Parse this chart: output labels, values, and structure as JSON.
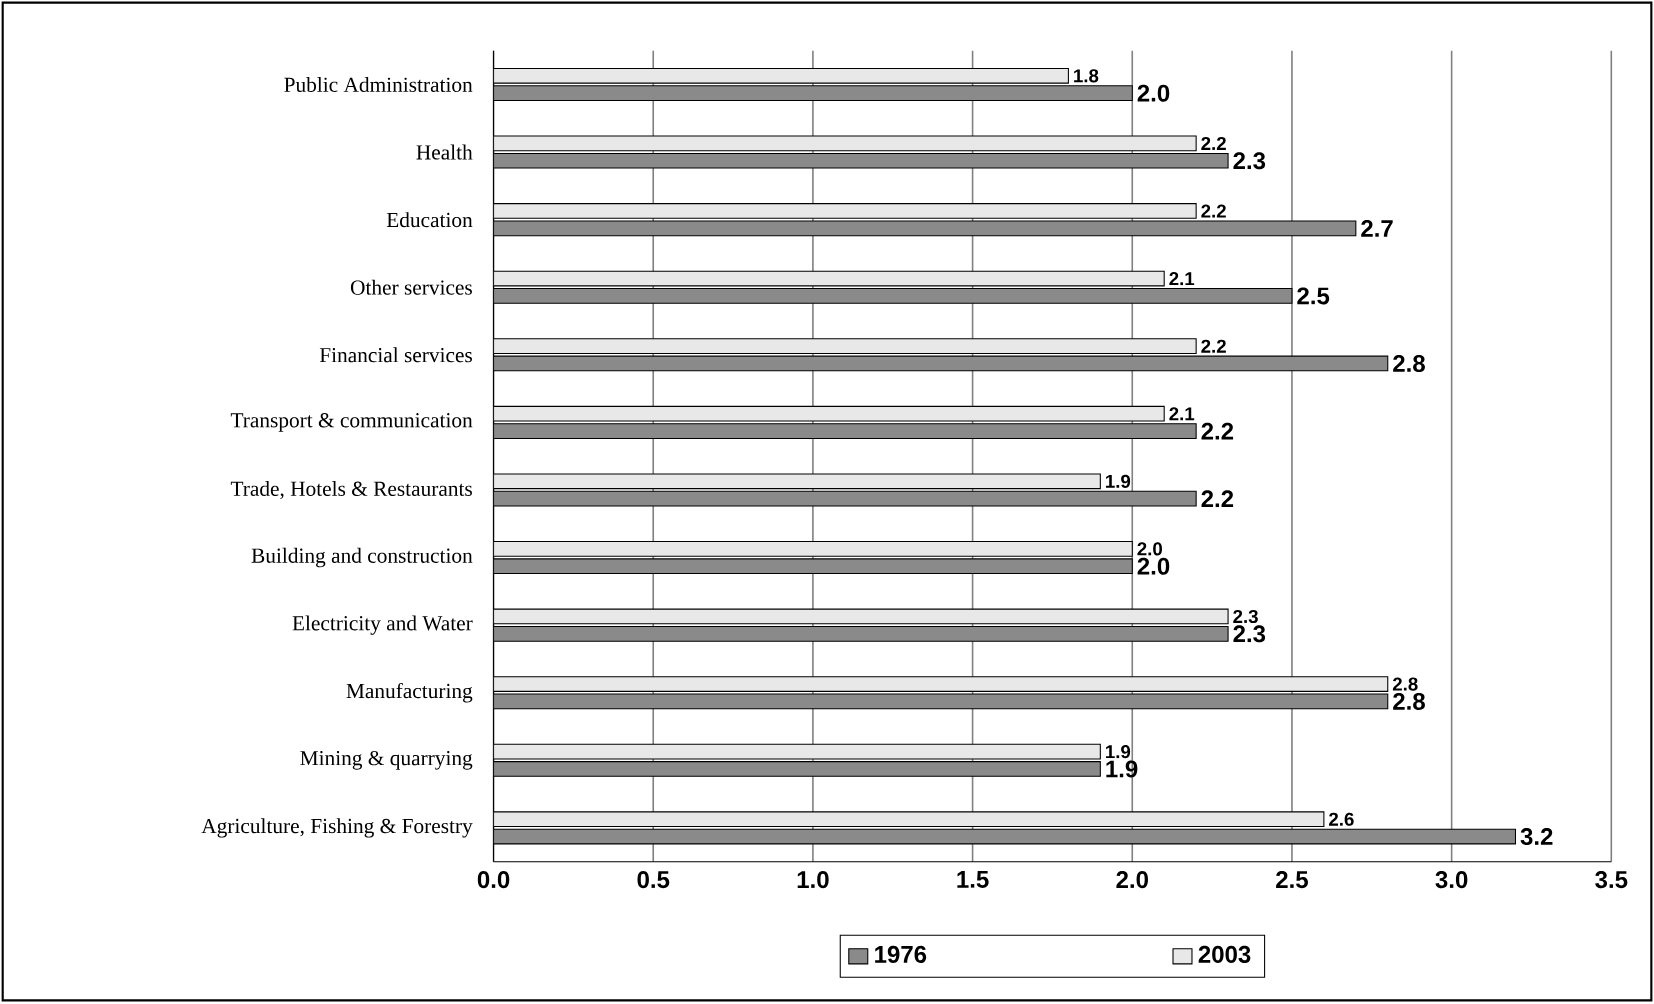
{
  "chart_data": {
    "type": "bar",
    "orientation": "horizontal",
    "categories": [
      "Public Administration",
      "Health",
      "Education",
      "Other services",
      "Financial services",
      "Transport & communication",
      "Trade, Hotels & Restaurants",
      "Building and construction",
      "Electricity and Water",
      "Manufacturing",
      "Mining & quarrying",
      "Agriculture, Fishing & Forestry"
    ],
    "series": [
      {
        "name": "1976",
        "color": "#8a8a8a",
        "values": [
          2.0,
          2.3,
          2.7,
          2.5,
          2.8,
          2.2,
          2.2,
          2.0,
          2.3,
          2.8,
          1.9,
          3.2
        ],
        "value_labels": [
          "2.0",
          "2.3",
          "2.7",
          "2.5",
          "2.8",
          "2.2",
          "2.2",
          "2.0",
          "2.3",
          "2.8",
          "1.9",
          "3.2"
        ]
      },
      {
        "name": "2003",
        "color": "#e8e8e8",
        "values": [
          1.8,
          2.2,
          2.2,
          2.1,
          2.2,
          2.1,
          1.9,
          2.0,
          2.3,
          2.8,
          1.9,
          2.6
        ],
        "value_labels": [
          "1.8",
          "2.2",
          "2.2",
          "2.1",
          "2.2",
          "2.1",
          "1.9",
          "2.0",
          "2.3",
          "2.8",
          "1.9",
          "2.6"
        ]
      }
    ],
    "xlim": [
      0,
      3.5
    ],
    "xticks": [
      {
        "value": 0,
        "label": "0.0"
      },
      {
        "value": 0.5,
        "label": "0.5"
      },
      {
        "value": 1,
        "label": "1.0"
      },
      {
        "value": 1.5,
        "label": "1.5"
      },
      {
        "value": 2,
        "label": "2.0"
      },
      {
        "value": 2.5,
        "label": "2.5"
      },
      {
        "value": 3,
        "label": "3.0"
      },
      {
        "value": 3.5,
        "label": "3.5"
      }
    ],
    "grid": "x",
    "legend": "bottom"
  }
}
